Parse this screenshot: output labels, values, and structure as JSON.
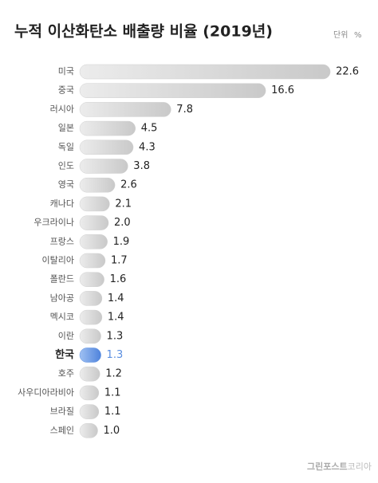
{
  "chart_data": {
    "type": "bar",
    "orientation": "horizontal",
    "title": "누적 이산화탄소 배출량 비율 (2019년)",
    "unit_label": "단위",
    "unit": "%",
    "categories": [
      "미국",
      "중국",
      "러시아",
      "일본",
      "독일",
      "인도",
      "영국",
      "캐나다",
      "우크라이나",
      "프랑스",
      "이탈리아",
      "폴란드",
      "남아공",
      "멕시코",
      "이란",
      "한국",
      "호주",
      "사우디아라비아",
      "브라질",
      "스페인"
    ],
    "values": [
      22.6,
      16.6,
      7.8,
      4.5,
      4.3,
      3.8,
      2.6,
      2.1,
      2.0,
      1.9,
      1.7,
      1.6,
      1.4,
      1.4,
      1.3,
      1.3,
      1.2,
      1.1,
      1.1,
      1.0
    ],
    "value_labels": [
      "22.6",
      "16.6",
      "7.8",
      "4.5",
      "4.3",
      "3.8",
      "2.6",
      "2.1",
      "2.0",
      "1.9",
      "1.7",
      "1.6",
      "1.4",
      "1.4",
      "1.3",
      "1.3",
      "1.2",
      "1.1",
      "1.1",
      "1.0"
    ],
    "color": "#cfcfcf",
    "highlight_index": 15,
    "highlight_color": "#5b8fe0",
    "source": [
      "그린포스트",
      "코리아"
    ]
  }
}
